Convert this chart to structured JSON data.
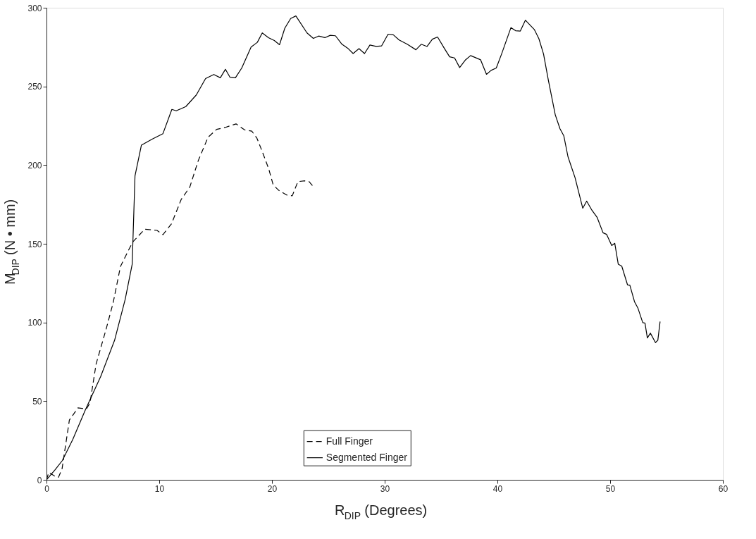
{
  "chart_data": {
    "type": "line",
    "xlabel": "R$_{DIP}$ (Degrees)",
    "ylabel": "M$_{DIP}$ (N • mm)",
    "xlim": [
      0,
      60
    ],
    "xticks": [
      0,
      10,
      20,
      30,
      40,
      50,
      60
    ],
    "ylim": [
      0,
      300
    ],
    "yticks": [
      0,
      50,
      100,
      150,
      200,
      250,
      300
    ],
    "grid": false,
    "legend": "bottom",
    "series": [
      {
        "name": "Full Finger",
        "color": "#000000",
        "line_style": "dashed",
        "x": [
          0,
          0.2,
          0.73,
          1.06,
          1.38,
          2.03,
          2.79,
          3.54,
          3.86,
          4.4,
          5.27,
          5.91,
          6.56,
          7.64,
          8.72,
          9.8,
          10.33,
          11.09,
          11.95,
          12.71,
          13.47,
          14.33,
          15.09,
          15.84,
          16.81,
          17.57,
          18.21,
          18.66,
          19.08,
          19.7,
          20.11,
          20.6,
          21.3,
          21.8,
          22.3,
          22.9,
          23.3,
          23.7
        ],
        "values": [
          0,
          4.7,
          2.4,
          1.6,
          7,
          38,
          45.7,
          45,
          48.9,
          73.6,
          95.3,
          112.4,
          135.6,
          151.1,
          159.3,
          158.5,
          155.8,
          162.7,
          178.2,
          186,
          203,
          217.7,
          222.7,
          223.9,
          226.2,
          222.4,
          221.6,
          217.2,
          209.7,
          197.9,
          187.4,
          184,
          181,
          180.5,
          189.5,
          190,
          189.5,
          186
        ]
      },
      {
        "name": "Segmented Finger",
        "color": "#000000",
        "line_style": "solid",
        "x": [
          0,
          0.78,
          1.4,
          2.33,
          3.44,
          4.81,
          6.05,
          6.98,
          7.6,
          7.85,
          8.42,
          9.37,
          10.33,
          11.12,
          11.51,
          12.36,
          13.29,
          14.11,
          14.84,
          15.42,
          15.87,
          16.28,
          16.76,
          17.32,
          18.15,
          18.7,
          19.14,
          19.69,
          20.21,
          20.67,
          21.14,
          21.66,
          22.12,
          23.11,
          23.67,
          24.14,
          24.7,
          25.17,
          25.63,
          26.21,
          26.72,
          27.2,
          27.72,
          28.21,
          28.69,
          29.25,
          29.73,
          30.3,
          30.76,
          31.28,
          32,
          32.77,
          33.24,
          33.76,
          34.23,
          34.69,
          35.31,
          35.76,
          36.2,
          36.65,
          37.17,
          37.62,
          38.51,
          39.03,
          39.44,
          39.9,
          40.37,
          41.2,
          41.61,
          42.03,
          42.48,
          43.27,
          43.68,
          44.09,
          44.51,
          45.13,
          45.55,
          45.89,
          46.26,
          46.89,
          47.57,
          47.92,
          48.34,
          48.85,
          49.37,
          49.68,
          50.14,
          50.41,
          50.72,
          51.03,
          51.54,
          51.75,
          52.16,
          52.47,
          52.89,
          53.09,
          53.3,
          53.57,
          54.02,
          54.23,
          54.43
        ],
        "values": [
          0,
          6.5,
          12.2,
          25.6,
          44.3,
          65.7,
          88.9,
          114.7,
          137,
          193.1,
          212.7,
          216.5,
          220,
          235.4,
          234.5,
          237.2,
          244.6,
          255,
          257.6,
          255.5,
          260.9,
          255.8,
          255.5,
          261.7,
          275,
          278,
          284,
          281,
          279.2,
          276.5,
          287,
          293.2,
          294.8,
          284,
          280.5,
          282,
          281,
          282.5,
          282.2,
          276.8,
          274.3,
          270.9,
          274,
          270.9,
          276.3,
          275.4,
          275.8,
          283.2,
          282.8,
          279.5,
          276.8,
          273.3,
          276.8,
          275.4,
          280,
          281.4,
          274,
          268.8,
          268.1,
          262,
          266.9,
          269.6,
          266.9,
          257.7,
          260.2,
          261.7,
          270.6,
          287.4,
          285.4,
          285.2,
          292.1,
          286.2,
          280.3,
          270.6,
          254.3,
          232,
          223.1,
          218.6,
          205.3,
          191.9,
          172.6,
          177.1,
          171.8,
          166.7,
          157,
          156,
          148.9,
          150.3,
          137,
          135.8,
          123.9,
          123.6,
          113.2,
          109,
          99.9,
          99.6,
          90.2,
          93.2,
          87.2,
          88.7,
          100.6
        ]
      }
    ]
  }
}
